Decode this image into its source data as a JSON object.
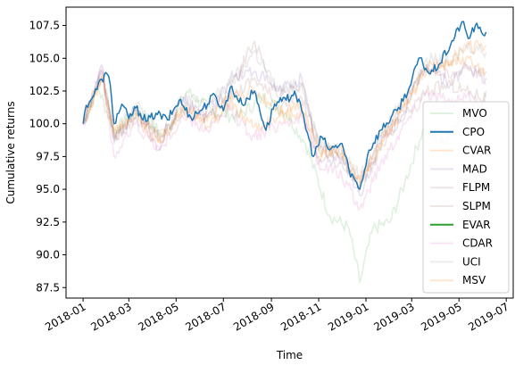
{
  "chart_data": {
    "type": "line",
    "title": "",
    "xlabel": "Time",
    "ylabel": "Cumulative returns",
    "xlim": [
      "2017-12-10",
      "2019-07-10"
    ],
    "ylim": [
      86.7,
      108.9
    ],
    "x_ticks": [
      "2018-01-01",
      "2018-03-01",
      "2018-05-01",
      "2018-07-01",
      "2018-09-01",
      "2018-11-01",
      "2019-01-01",
      "2019-03-01",
      "2019-05-01",
      "2019-07-01"
    ],
    "x_tick_labels": [
      "2018-01",
      "2018-03",
      "2018-05",
      "2018-07",
      "2018-09",
      "2018-11",
      "2019-01",
      "2019-03",
      "2019-05",
      "2019-07"
    ],
    "y_ticks": [
      87.5,
      90.0,
      92.5,
      95.0,
      97.5,
      100.0,
      102.5,
      105.0,
      107.5
    ],
    "y_tick_labels": [
      "87.5",
      "90.0",
      "92.5",
      "95.0",
      "97.5",
      "100.0",
      "102.5",
      "105.0",
      "107.5"
    ],
    "grid": false,
    "legend_position": "lower-right",
    "series": [
      {
        "name": "MVO",
        "color": "#2ca02c",
        "opacity": 0.15,
        "points": [
          [
            "2018-01-01",
            100.0
          ],
          [
            "2018-01-20",
            102.8
          ],
          [
            "2018-02-10",
            99.5
          ],
          [
            "2018-03-15",
            101.0
          ],
          [
            "2018-04-15",
            99.0
          ],
          [
            "2018-05-15",
            102.5
          ],
          [
            "2018-06-15",
            101.0
          ],
          [
            "2018-07-20",
            100.5
          ],
          [
            "2018-08-20",
            102.0
          ],
          [
            "2018-09-20",
            100.8
          ],
          [
            "2018-10-15",
            98.5
          ],
          [
            "2018-11-15",
            93.0
          ],
          [
            "2018-12-10",
            92.0
          ],
          [
            "2018-12-24",
            87.9
          ],
          [
            "2019-01-10",
            92.0
          ],
          [
            "2019-02-01",
            92.5
          ],
          [
            "2019-02-20",
            95.5
          ],
          [
            "2019-03-15",
            99.5
          ],
          [
            "2019-04-10",
            98.5
          ],
          [
            "2019-05-05",
            101.0
          ],
          [
            "2019-05-25",
            100.5
          ],
          [
            "2019-06-05",
            102.5
          ]
        ]
      },
      {
        "name": "CPO",
        "color": "#1f77b4",
        "opacity": 1.0,
        "points": [
          [
            "2018-01-01",
            100.0
          ],
          [
            "2018-01-05",
            101.4
          ],
          [
            "2018-01-15",
            102.2
          ],
          [
            "2018-01-25",
            103.4
          ],
          [
            "2018-02-01",
            103.8
          ],
          [
            "2018-02-05",
            103.0
          ],
          [
            "2018-02-10",
            100.0
          ],
          [
            "2018-02-20",
            101.5
          ],
          [
            "2018-03-01",
            100.4
          ],
          [
            "2018-03-10",
            101.2
          ],
          [
            "2018-03-25",
            100.2
          ],
          [
            "2018-04-05",
            100.8
          ],
          [
            "2018-04-20",
            100.3
          ],
          [
            "2018-05-05",
            101.8
          ],
          [
            "2018-05-20",
            100.5
          ],
          [
            "2018-06-05",
            101.2
          ],
          [
            "2018-06-20",
            102.2
          ],
          [
            "2018-07-01",
            101.0
          ],
          [
            "2018-07-10",
            102.8
          ],
          [
            "2018-07-25",
            101.5
          ],
          [
            "2018-08-10",
            102.5
          ],
          [
            "2018-08-25",
            99.5
          ],
          [
            "2018-09-05",
            101.5
          ],
          [
            "2018-09-20",
            101.8
          ],
          [
            "2018-10-01",
            102.5
          ],
          [
            "2018-10-10",
            101.0
          ],
          [
            "2018-10-25",
            97.5
          ],
          [
            "2018-11-05",
            99.0
          ],
          [
            "2018-11-15",
            98.0
          ],
          [
            "2018-12-01",
            98.5
          ],
          [
            "2018-12-10",
            96.5
          ],
          [
            "2018-12-24",
            95.0
          ],
          [
            "2019-01-05",
            98.0
          ],
          [
            "2019-01-20",
            99.5
          ],
          [
            "2019-02-10",
            101.0
          ],
          [
            "2019-02-28",
            103.0
          ],
          [
            "2019-03-10",
            105.0
          ],
          [
            "2019-03-25",
            103.8
          ],
          [
            "2019-04-05",
            104.5
          ],
          [
            "2019-04-20",
            106.0
          ],
          [
            "2019-05-05",
            107.8
          ],
          [
            "2019-05-13",
            106.5
          ],
          [
            "2019-05-22",
            107.5
          ],
          [
            "2019-06-01",
            106.8
          ],
          [
            "2019-06-05",
            107.0
          ]
        ]
      },
      {
        "name": "CVAR",
        "color": "#ff7f0e",
        "opacity": 0.2,
        "points": [
          [
            "2018-01-01",
            100.0
          ],
          [
            "2018-01-25",
            103.5
          ],
          [
            "2018-02-10",
            99.2
          ],
          [
            "2018-03-10",
            100.5
          ],
          [
            "2018-04-10",
            98.5
          ],
          [
            "2018-05-10",
            101.2
          ],
          [
            "2018-06-10",
            99.8
          ],
          [
            "2018-07-10",
            101.5
          ],
          [
            "2018-08-10",
            99.8
          ],
          [
            "2018-09-10",
            100.5
          ],
          [
            "2018-10-10",
            101.0
          ],
          [
            "2018-11-01",
            97.5
          ],
          [
            "2018-12-01",
            98.0
          ],
          [
            "2018-12-24",
            95.5
          ],
          [
            "2019-01-20",
            98.0
          ],
          [
            "2019-02-20",
            101.5
          ],
          [
            "2019-03-20",
            104.0
          ],
          [
            "2019-04-20",
            104.5
          ],
          [
            "2019-05-10",
            105.0
          ],
          [
            "2019-06-05",
            104.0
          ]
        ]
      },
      {
        "name": "MAD",
        "color": "#9467bd",
        "opacity": 0.2,
        "points": [
          [
            "2018-01-01",
            100.0
          ],
          [
            "2018-01-25",
            104.5
          ],
          [
            "2018-02-10",
            98.5
          ],
          [
            "2018-03-10",
            101.0
          ],
          [
            "2018-04-10",
            98.0
          ],
          [
            "2018-05-10",
            102.0
          ],
          [
            "2018-06-10",
            100.5
          ],
          [
            "2018-07-10",
            103.5
          ],
          [
            "2018-08-10",
            104.0
          ],
          [
            "2018-09-10",
            102.5
          ],
          [
            "2018-10-10",
            103.5
          ],
          [
            "2018-11-01",
            97.0
          ],
          [
            "2018-12-01",
            97.5
          ],
          [
            "2018-12-24",
            94.5
          ],
          [
            "2019-01-20",
            98.5
          ],
          [
            "2019-02-20",
            101.0
          ],
          [
            "2019-03-20",
            104.5
          ],
          [
            "2019-04-20",
            103.0
          ],
          [
            "2019-05-10",
            104.5
          ],
          [
            "2019-06-05",
            103.0
          ]
        ]
      },
      {
        "name": "FLPM",
        "color": "#8c564b",
        "opacity": 0.15,
        "points": [
          [
            "2018-01-01",
            100.0
          ],
          [
            "2018-01-25",
            103.8
          ],
          [
            "2018-02-10",
            99.0
          ],
          [
            "2018-03-10",
            100.5
          ],
          [
            "2018-04-10",
            99.0
          ],
          [
            "2018-05-10",
            101.0
          ],
          [
            "2018-06-10",
            100.5
          ],
          [
            "2018-07-10",
            102.0
          ],
          [
            "2018-08-10",
            103.5
          ],
          [
            "2018-09-10",
            101.5
          ],
          [
            "2018-10-10",
            102.0
          ],
          [
            "2018-11-01",
            98.5
          ],
          [
            "2018-12-01",
            97.5
          ],
          [
            "2018-12-24",
            95.2
          ],
          [
            "2019-01-20",
            98.0
          ],
          [
            "2019-02-20",
            100.5
          ],
          [
            "2019-03-20",
            102.5
          ],
          [
            "2019-04-20",
            103.0
          ],
          [
            "2019-05-10",
            102.5
          ],
          [
            "2019-06-05",
            102.0
          ]
        ]
      },
      {
        "name": "SLPM",
        "color": "#8c564b",
        "opacity": 0.15,
        "points": [
          [
            "2018-01-01",
            100.0
          ],
          [
            "2018-01-25",
            104.0
          ],
          [
            "2018-02-10",
            98.8
          ],
          [
            "2018-03-10",
            101.0
          ],
          [
            "2018-04-10",
            98.8
          ],
          [
            "2018-05-10",
            101.5
          ],
          [
            "2018-06-10",
            101.0
          ],
          [
            "2018-07-10",
            102.5
          ],
          [
            "2018-08-10",
            106.3
          ],
          [
            "2018-09-10",
            102.0
          ],
          [
            "2018-10-10",
            103.0
          ],
          [
            "2018-11-01",
            98.0
          ],
          [
            "2018-12-01",
            97.0
          ],
          [
            "2018-12-24",
            95.5
          ],
          [
            "2019-01-20",
            99.0
          ],
          [
            "2019-02-20",
            101.5
          ],
          [
            "2019-03-20",
            104.5
          ],
          [
            "2019-04-20",
            103.5
          ],
          [
            "2019-05-10",
            104.5
          ],
          [
            "2019-06-05",
            103.5
          ]
        ]
      },
      {
        "name": "EVAR",
        "color": "#2ca02c",
        "opacity": 1.0,
        "points": []
      },
      {
        "name": "CDAR",
        "color": "#e377c2",
        "opacity": 0.2,
        "points": [
          [
            "2018-01-01",
            100.0
          ],
          [
            "2018-01-25",
            104.2
          ],
          [
            "2018-02-10",
            97.5
          ],
          [
            "2018-03-10",
            100.0
          ],
          [
            "2018-04-10",
            98.0
          ],
          [
            "2018-05-10",
            100.5
          ],
          [
            "2018-06-10",
            99.5
          ],
          [
            "2018-07-10",
            101.0
          ],
          [
            "2018-08-10",
            99.0
          ],
          [
            "2018-09-10",
            100.0
          ],
          [
            "2018-10-10",
            100.5
          ],
          [
            "2018-11-01",
            97.0
          ],
          [
            "2018-12-01",
            96.0
          ],
          [
            "2018-12-24",
            93.5
          ],
          [
            "2019-01-20",
            97.0
          ],
          [
            "2019-02-20",
            100.0
          ],
          [
            "2019-03-20",
            102.5
          ],
          [
            "2019-04-20",
            101.5
          ],
          [
            "2019-05-10",
            102.0
          ],
          [
            "2019-06-05",
            101.5
          ]
        ]
      },
      {
        "name": "UCI",
        "color": "#7f7f7f",
        "opacity": 0.15,
        "points": [
          [
            "2018-01-01",
            100.0
          ],
          [
            "2018-01-25",
            104.0
          ],
          [
            "2018-02-10",
            99.0
          ],
          [
            "2018-03-10",
            101.5
          ],
          [
            "2018-04-10",
            99.5
          ],
          [
            "2018-05-10",
            102.0
          ],
          [
            "2018-06-10",
            101.5
          ],
          [
            "2018-07-10",
            103.0
          ],
          [
            "2018-08-10",
            105.5
          ],
          [
            "2018-09-10",
            102.5
          ],
          [
            "2018-10-10",
            103.0
          ],
          [
            "2018-11-01",
            98.8
          ],
          [
            "2018-12-01",
            98.0
          ],
          [
            "2018-12-24",
            96.0
          ],
          [
            "2019-01-20",
            99.0
          ],
          [
            "2019-02-20",
            102.0
          ],
          [
            "2019-03-20",
            105.0
          ],
          [
            "2019-04-20",
            104.5
          ],
          [
            "2019-05-10",
            106.0
          ],
          [
            "2019-06-05",
            105.5
          ]
        ]
      },
      {
        "name": "MSV",
        "color": "#ff7f0e",
        "opacity": 0.2,
        "points": [
          [
            "2018-01-01",
            100.0
          ],
          [
            "2018-01-25",
            103.6
          ],
          [
            "2018-02-10",
            99.3
          ],
          [
            "2018-03-10",
            100.8
          ],
          [
            "2018-04-10",
            98.8
          ],
          [
            "2018-05-10",
            101.3
          ],
          [
            "2018-06-10",
            100.2
          ],
          [
            "2018-07-10",
            101.8
          ],
          [
            "2018-08-10",
            102.5
          ],
          [
            "2018-09-10",
            101.0
          ],
          [
            "2018-10-10",
            101.5
          ],
          [
            "2018-11-01",
            98.0
          ],
          [
            "2018-12-01",
            97.8
          ],
          [
            "2018-12-24",
            95.8
          ],
          [
            "2019-01-20",
            98.5
          ],
          [
            "2019-02-20",
            101.5
          ],
          [
            "2019-03-20",
            104.2
          ],
          [
            "2019-04-20",
            104.8
          ],
          [
            "2019-05-10",
            105.8
          ],
          [
            "2019-06-05",
            106.0
          ]
        ]
      }
    ]
  }
}
